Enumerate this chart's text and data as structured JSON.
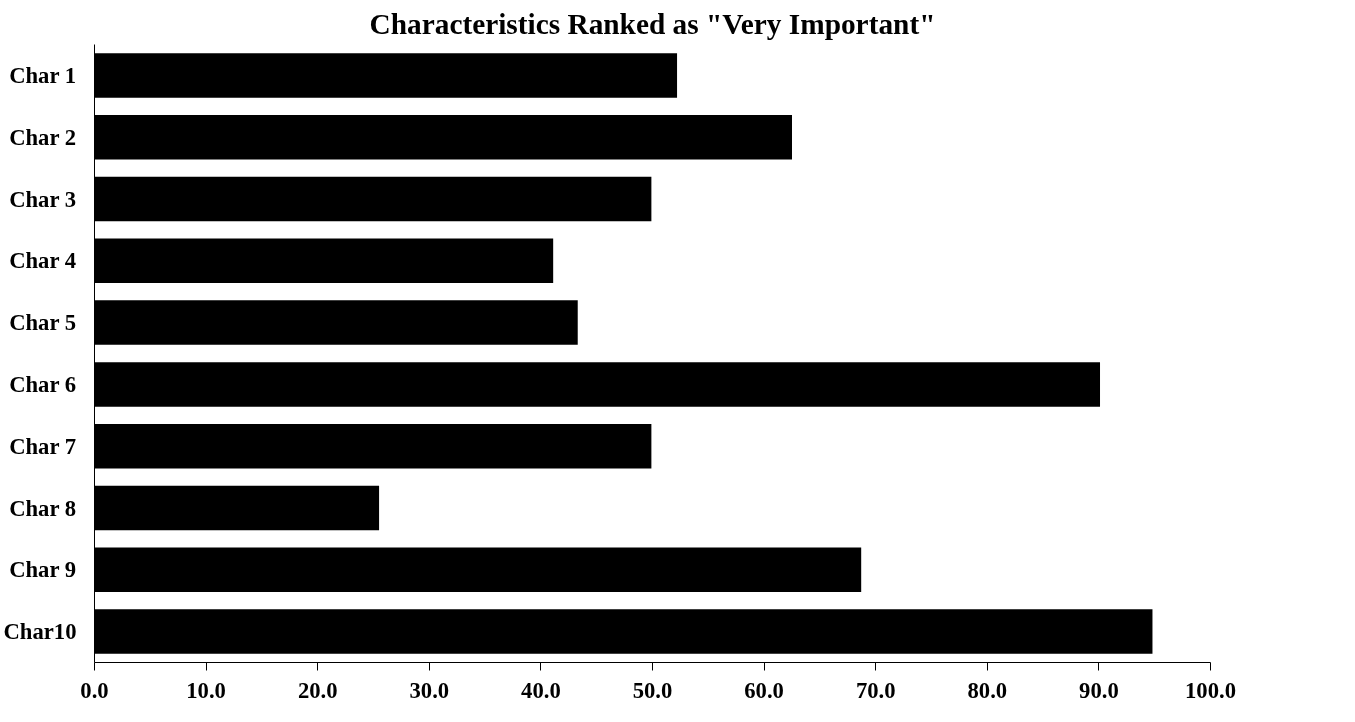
{
  "chart_data": {
    "type": "bar",
    "orientation": "horizontal",
    "title": "Characteristics Ranked as \"Very Important\"",
    "categories": [
      "Char 1",
      "Char 2",
      "Char 3",
      "Char 4",
      "Char 5",
      "Char 6",
      "Char 7",
      "Char 8",
      "Char 9",
      "Char10"
    ],
    "values": [
      52.2,
      62.5,
      49.9,
      41.1,
      43.3,
      90.1,
      49.9,
      25.5,
      68.7,
      94.8
    ],
    "color": "#000000",
    "xlim": [
      0,
      100
    ],
    "xticks": [
      {
        "value": 0,
        "label": "0.0"
      },
      {
        "value": 10,
        "label": "10.0"
      },
      {
        "value": 20,
        "label": "20.0"
      },
      {
        "value": 30,
        "label": "30.0"
      },
      {
        "value": 40,
        "label": "40.0"
      },
      {
        "value": 50,
        "label": "50.0"
      },
      {
        "value": 60,
        "label": "60.0"
      },
      {
        "value": 70,
        "label": "70.0"
      },
      {
        "value": 80,
        "label": "80.0"
      },
      {
        "value": 90,
        "label": "90.0"
      },
      {
        "value": 100,
        "label": "100.0"
      }
    ],
    "grid": false
  }
}
